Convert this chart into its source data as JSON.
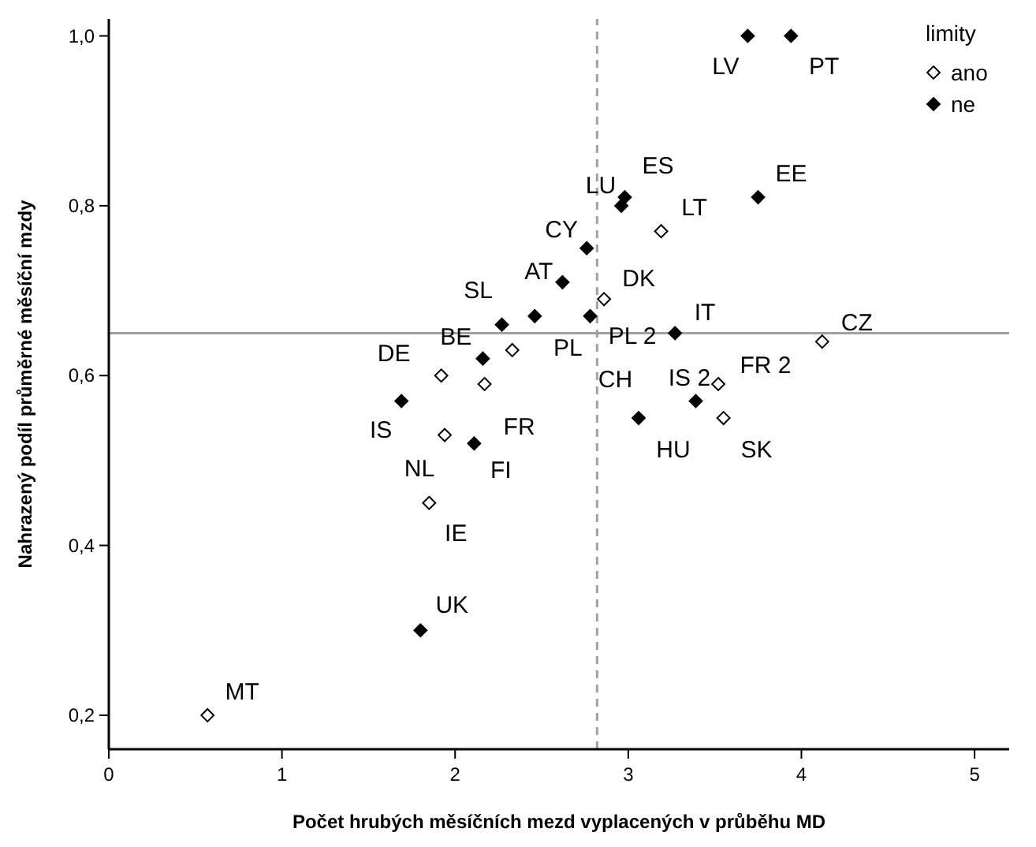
{
  "chart_data": {
    "type": "scatter",
    "xlabel": "Počet hrubých měsíčních mezd vyplacených v průběhu MD",
    "ylabel": "Nahrazený podíl průměrné měsíční mzdy",
    "legend_title": "limity",
    "legend": "top right",
    "marker": "diamond",
    "grid": false,
    "xlim": [
      0,
      5.2
    ],
    "xticks": [
      0,
      1,
      2,
      3,
      4,
      5
    ],
    "ylim": [
      0.16,
      1.02
    ],
    "yticks": [
      {
        "value": 0.2,
        "label": "0,2"
      },
      {
        "value": 0.4,
        "label": "0,4"
      },
      {
        "value": 0.6,
        "label": "0,6"
      },
      {
        "value": 0.8,
        "label": "0,8"
      },
      {
        "value": 1.0,
        "label": "1,0"
      }
    ],
    "ref_lines": [
      {
        "axis": "y",
        "value": 0.65,
        "color": "#a0a0a0",
        "line_style": "solid"
      },
      {
        "axis": "x",
        "value": 2.82,
        "color": "#a0a0a0",
        "line_style": "dashed"
      }
    ],
    "series": [
      {
        "name": "ano",
        "color": "#ffffff",
        "x": [
          0.57,
          1.85,
          1.94,
          1.92,
          2.17,
          2.33,
          2.86,
          3.19,
          4.12,
          3.52,
          3.55
        ],
        "values": [
          0.2,
          0.45,
          0.53,
          0.6,
          0.59,
          0.63,
          0.69,
          0.77,
          0.64,
          0.59,
          0.55
        ]
      },
      {
        "name": "ne",
        "color": "#000000",
        "x": [
          1.8,
          2.11,
          1.69,
          2.16,
          2.27,
          2.46,
          2.62,
          2.76,
          2.78,
          2.96,
          2.98,
          3.27,
          3.75,
          3.69,
          3.94,
          3.06,
          3.39
        ],
        "values": [
          0.3,
          0.52,
          0.57,
          0.62,
          0.66,
          0.67,
          0.71,
          0.75,
          0.67,
          0.8,
          0.81,
          0.65,
          0.81,
          1.0,
          1.0,
          0.55,
          0.57
        ]
      }
    ],
    "annotations": [
      {
        "text": "LV",
        "x": 3.69,
        "y": 1.0
      },
      {
        "text": "PT",
        "x": 3.94,
        "y": 1.0
      },
      {
        "text": "ES",
        "x": 2.98,
        "y": 0.81
      },
      {
        "text": "LU",
        "x": 2.96,
        "y": 0.8
      },
      {
        "text": "EE",
        "x": 3.75,
        "y": 0.81
      },
      {
        "text": "LT",
        "x": 3.19,
        "y": 0.77
      },
      {
        "text": "CY",
        "x": 2.76,
        "y": 0.75
      },
      {
        "text": "AT",
        "x": 2.62,
        "y": 0.71
      },
      {
        "text": "DK",
        "x": 2.86,
        "y": 0.69
      },
      {
        "text": "SL",
        "x": 2.27,
        "y": 0.66
      },
      {
        "text": "IT",
        "x": 3.27,
        "y": 0.65
      },
      {
        "text": "CZ",
        "x": 4.12,
        "y": 0.64
      },
      {
        "text": "BE",
        "x": 2.16,
        "y": 0.62
      },
      {
        "text": "PL 2",
        "x": 3.27,
        "y": 0.65
      },
      {
        "text": "DE",
        "x": 1.92,
        "y": 0.6
      },
      {
        "text": "PL",
        "x": 2.46,
        "y": 0.67
      },
      {
        "text": "FR 2",
        "x": 3.52,
        "y": 0.59
      },
      {
        "text": "CH",
        "x": 2.78,
        "y": 0.67
      },
      {
        "text": "IS 2",
        "x": 3.39,
        "y": 0.57
      },
      {
        "text": "IS",
        "x": 1.69,
        "y": 0.57
      },
      {
        "text": "FR",
        "x": 2.17,
        "y": 0.59
      },
      {
        "text": "NL",
        "x": 1.94,
        "y": 0.53
      },
      {
        "text": "FI",
        "x": 2.11,
        "y": 0.52
      },
      {
        "text": "HU",
        "x": 3.06,
        "y": 0.55
      },
      {
        "text": "SK",
        "x": 3.55,
        "y": 0.55
      },
      {
        "text": "IE",
        "x": 1.85,
        "y": 0.45
      },
      {
        "text": "UK",
        "x": 1.8,
        "y": 0.3
      },
      {
        "text": "MT",
        "x": 0.57,
        "y": 0.2
      }
    ]
  }
}
